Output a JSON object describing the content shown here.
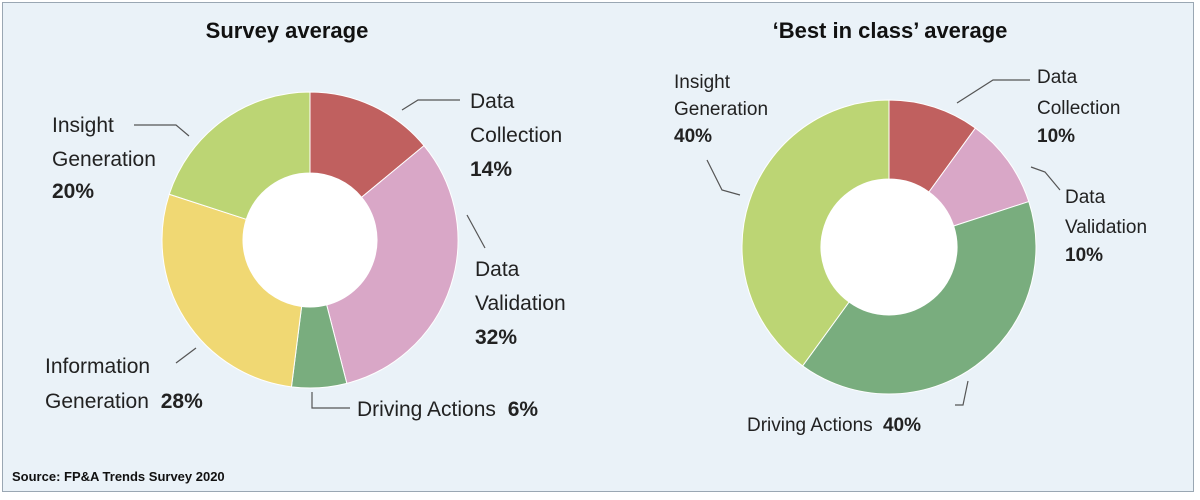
{
  "chart_data": [
    {
      "type": "pie",
      "title": "Survey average",
      "categories": [
        "Data Collection",
        "Data Validation",
        "Driving Actions",
        "Information Generation",
        "Insight Generation"
      ],
      "values": [
        14,
        32,
        6,
        28,
        20
      ],
      "value_labels": [
        "14%",
        "32%",
        "6%",
        "28%",
        "20%"
      ],
      "colors": [
        "#c0605f",
        "#d9a7c7",
        "#79ad7e",
        "#f0d873",
        "#bcd574"
      ],
      "label_lines": [
        [
          "Data",
          "Collection"
        ],
        [
          "Data",
          "Validation"
        ],
        [
          "Driving Actions"
        ],
        [
          "Information",
          "Generation"
        ],
        [
          "Insight",
          "Generation"
        ]
      ]
    },
    {
      "type": "pie",
      "title": "‘Best in class’ average",
      "categories": [
        "Data Collection",
        "Data Validation",
        "Driving Actions",
        "Insight Generation"
      ],
      "values": [
        10,
        10,
        40,
        40
      ],
      "value_labels": [
        "10%",
        "10%",
        "40%",
        "40%"
      ],
      "colors": [
        "#c0605f",
        "#d9a7c7",
        "#79ad7e",
        "#bcd574"
      ],
      "label_lines": [
        [
          "Data",
          "Collection"
        ],
        [
          "Data",
          "Validation"
        ],
        [
          "Driving Actions"
        ],
        [
          "Insight",
          "Generation"
        ]
      ]
    }
  ],
  "source": "Source: FP&A Trends Survey 2020"
}
